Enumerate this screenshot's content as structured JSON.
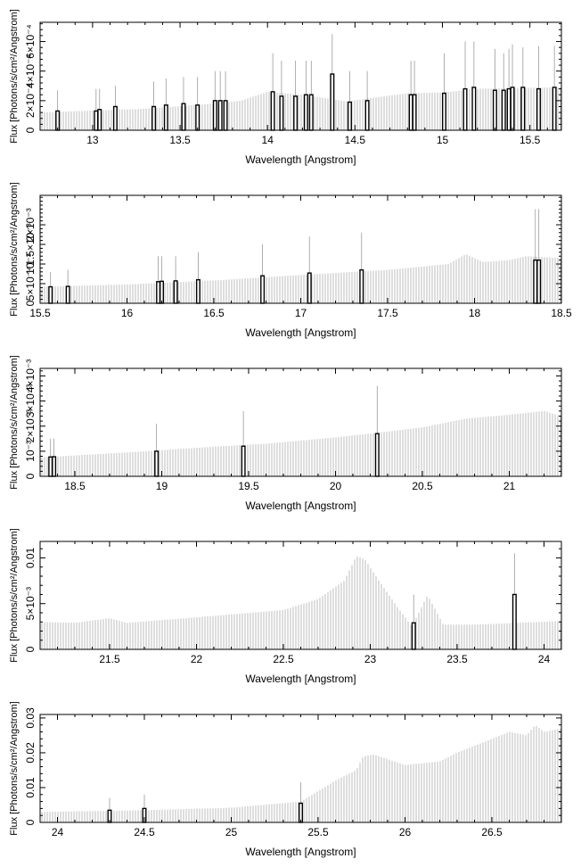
{
  "chart_data": [
    {
      "type": "bar",
      "xlabel": "Wavelength [Angstrom]",
      "ylabel": "Flux [Photons/s/cm²/Angstrom]",
      "xlim": [
        12.7,
        15.68
      ],
      "ylim": [
        0,
        0.00073
      ],
      "xticks": [
        13,
        13.5,
        14,
        14.5,
        15,
        15.5
      ],
      "xtick_labels": [
        "13",
        "13.5",
        "14",
        "14.5",
        "15",
        "15.5"
      ],
      "yticks": [
        0,
        0.0002,
        0.0004,
        0.0006
      ],
      "ytick_labels": [
        "0",
        "2×10⁻⁴",
        "4×10⁻⁴",
        "6×10⁻⁴"
      ],
      "continuum": [
        [
          12.7,
          0.00012
        ],
        [
          13.3,
          0.000145
        ],
        [
          13.7,
          0.00018
        ],
        [
          13.85,
          0.0002
        ],
        [
          14.0,
          0.00026
        ],
        [
          14.2,
          0.00024
        ],
        [
          14.45,
          0.000195
        ],
        [
          14.8,
          0.00025
        ],
        [
          15.0,
          0.000255
        ],
        [
          15.2,
          0.00028
        ],
        [
          15.68,
          0.00029
        ]
      ],
      "lines": [
        [
          12.8,
          0.00013,
          0.00027
        ],
        [
          13.02,
          0.00013,
          0.00028
        ],
        [
          13.04,
          0.00014,
          0.00028
        ],
        [
          13.13,
          0.00016,
          0.0003
        ],
        [
          13.35,
          0.00016,
          0.00033
        ],
        [
          13.42,
          0.00017,
          0.00035
        ],
        [
          13.52,
          0.00018,
          0.00036
        ],
        [
          13.6,
          0.00017,
          0.00036
        ],
        [
          13.7,
          0.0002,
          0.0004
        ],
        [
          13.73,
          0.0002,
          0.0004
        ],
        [
          13.76,
          0.0002,
          0.0004
        ],
        [
          14.03,
          0.00026,
          0.00052
        ],
        [
          14.08,
          0.00023,
          0.00047
        ],
        [
          14.16,
          0.00023,
          0.00047
        ],
        [
          14.22,
          0.00024,
          0.00047
        ],
        [
          14.25,
          0.00024,
          0.00047
        ],
        [
          14.37,
          0.00038,
          0.00065
        ],
        [
          14.47,
          0.00019,
          0.0004
        ],
        [
          14.57,
          0.0002,
          0.0004
        ],
        [
          14.82,
          0.00024,
          0.00047
        ],
        [
          14.84,
          0.00024,
          0.00047
        ],
        [
          15.01,
          0.00025,
          0.00052
        ],
        [
          15.13,
          0.00028,
          0.0006
        ],
        [
          15.18,
          0.00029,
          0.0006
        ],
        [
          15.3,
          0.00027,
          0.00055
        ],
        [
          15.35,
          0.00027,
          0.00052
        ],
        [
          15.38,
          0.00028,
          0.00055
        ],
        [
          15.4,
          0.00029,
          0.00058
        ],
        [
          15.46,
          0.00029,
          0.00056
        ],
        [
          15.55,
          0.00028,
          0.00057
        ],
        [
          15.64,
          0.00029,
          0.00057
        ]
      ]
    },
    {
      "type": "bar",
      "xlabel": "Wavelength [Angstrom]",
      "ylabel": "Flux [Photons/s/cm²/Angstrom]",
      "xlim": [
        15.5,
        18.5
      ],
      "ylim": [
        0,
        0.00275
      ],
      "xticks": [
        15.5,
        16,
        16.5,
        17,
        17.5,
        18,
        18.5
      ],
      "xtick_labels": [
        "15.5",
        "16",
        "16.5",
        "17",
        "17.5",
        "18",
        "18.5"
      ],
      "yticks": [
        0,
        0.0005,
        0.001,
        0.0015,
        0.002
      ],
      "ytick_labels": [
        "0",
        "5×10⁻⁴",
        "10⁻³",
        "1.5×10⁻³",
        "2×10⁻³"
      ],
      "continuum": [
        [
          15.5,
          0.00042
        ],
        [
          16.0,
          0.00048
        ],
        [
          16.5,
          0.00058
        ],
        [
          17.0,
          0.00072
        ],
        [
          17.5,
          0.00085
        ],
        [
          17.85,
          0.001
        ],
        [
          17.95,
          0.00125
        ],
        [
          18.05,
          0.00105
        ],
        [
          18.2,
          0.0011
        ],
        [
          18.3,
          0.0012
        ],
        [
          18.5,
          0.00115
        ]
      ],
      "lines": [
        [
          15.56,
          0.00042,
          0.0008
        ],
        [
          15.66,
          0.00043,
          0.00085
        ],
        [
          16.18,
          0.00055,
          0.0012
        ],
        [
          16.2,
          0.00056,
          0.0012
        ],
        [
          16.28,
          0.00057,
          0.0012
        ],
        [
          16.41,
          0.0006,
          0.0013
        ],
        [
          16.78,
          0.0007,
          0.0015
        ],
        [
          17.05,
          0.00077,
          0.0017
        ],
        [
          17.35,
          0.00085,
          0.0018
        ],
        [
          18.35,
          0.0011,
          0.0024
        ],
        [
          18.37,
          0.0011,
          0.0024
        ]
      ]
    },
    {
      "type": "bar",
      "xlabel": "Wavelength [Angstrom]",
      "ylabel": "Flux [Photons/s/cm²/Angstrom]",
      "xlim": [
        18.3,
        21.3
      ],
      "ylim": [
        0,
        0.0043
      ],
      "xticks": [
        18.5,
        19,
        19.5,
        20,
        20.5,
        21
      ],
      "xtick_labels": [
        "18.5",
        "19",
        "19.5",
        "20",
        "20.5",
        "21"
      ],
      "yticks": [
        0,
        0.001,
        0.002,
        0.003,
        0.004
      ],
      "ytick_labels": [
        "0",
        "10⁻³",
        "2×10⁻³",
        "3×10⁻³",
        "4×10⁻³"
      ],
      "continuum": [
        [
          18.3,
          0.00075
        ],
        [
          18.8,
          0.00095
        ],
        [
          19.3,
          0.00118
        ],
        [
          19.6,
          0.0013
        ],
        [
          20.0,
          0.00155
        ],
        [
          20.2,
          0.0017
        ],
        [
          20.5,
          0.00195
        ],
        [
          20.75,
          0.0023
        ],
        [
          21.0,
          0.00245
        ],
        [
          21.2,
          0.0026
        ],
        [
          21.3,
          0.0024
        ]
      ],
      "lines": [
        [
          18.36,
          0.00077,
          0.0015
        ],
        [
          18.38,
          0.00078,
          0.0015
        ],
        [
          18.97,
          0.001,
          0.0021
        ],
        [
          19.47,
          0.0012,
          0.0026
        ],
        [
          20.24,
          0.0017,
          0.0036
        ]
      ]
    },
    {
      "type": "bar",
      "xlabel": "Wavelength [Angstrom]",
      "ylabel": "Flux [Photons/s/cm²/Angstrom]",
      "xlim": [
        21.1,
        24.1
      ],
      "ylim": [
        0,
        0.0118
      ],
      "xticks": [
        21.5,
        22,
        22.5,
        23,
        23.5,
        24
      ],
      "xtick_labels": [
        "21.5",
        "22",
        "22.5",
        "23",
        "23.5",
        "24"
      ],
      "yticks": [
        0,
        0.005,
        0.01
      ],
      "ytick_labels": [
        "0",
        "5×10⁻³",
        "0.01"
      ],
      "continuum": [
        [
          21.1,
          0.003
        ],
        [
          21.3,
          0.0029
        ],
        [
          21.5,
          0.0034
        ],
        [
          21.6,
          0.0029
        ],
        [
          22.0,
          0.0035
        ],
        [
          22.5,
          0.0043
        ],
        [
          22.7,
          0.0055
        ],
        [
          22.85,
          0.0075
        ],
        [
          22.92,
          0.0102
        ],
        [
          22.97,
          0.0098
        ],
        [
          23.05,
          0.0075
        ],
        [
          23.15,
          0.0048
        ],
        [
          23.24,
          0.0025
        ],
        [
          23.3,
          0.0048
        ],
        [
          23.33,
          0.0059
        ],
        [
          23.37,
          0.0045
        ],
        [
          23.42,
          0.0027
        ],
        [
          23.6,
          0.0027
        ],
        [
          24.1,
          0.0031
        ]
      ],
      "lines": [
        [
          23.25,
          0.0029,
          0.006
        ],
        [
          23.83,
          0.006,
          0.0105
        ]
      ]
    },
    {
      "type": "bar",
      "xlabel": "Wavelength [Angstrom]",
      "ylabel": "Flux [Photons/s/cm²/Angstrom]",
      "xlim": [
        23.9,
        26.9
      ],
      "ylim": [
        0,
        0.031
      ],
      "xticks": [
        24,
        24.5,
        25,
        25.5,
        26,
        26.5
      ],
      "xtick_labels": [
        "24",
        "24.5",
        "25",
        "25.5",
        "26",
        "26.5"
      ],
      "yticks": [
        0,
        0.01,
        0.02,
        0.03
      ],
      "ytick_labels": [
        "0",
        "0.01",
        "0.02",
        "0.03"
      ],
      "continuum": [
        [
          23.9,
          0.003
        ],
        [
          24.5,
          0.0035
        ],
        [
          25.0,
          0.0042
        ],
        [
          25.4,
          0.006
        ],
        [
          25.6,
          0.012
        ],
        [
          25.72,
          0.015
        ],
        [
          25.76,
          0.019
        ],
        [
          25.82,
          0.0195
        ],
        [
          26.0,
          0.0165
        ],
        [
          26.2,
          0.0175
        ],
        [
          26.3,
          0.02
        ],
        [
          26.5,
          0.024
        ],
        [
          26.6,
          0.026
        ],
        [
          26.7,
          0.025
        ],
        [
          26.75,
          0.028
        ],
        [
          26.8,
          0.026
        ],
        [
          26.9,
          0.027
        ]
      ],
      "lines": [
        [
          24.3,
          0.0035,
          0.007
        ],
        [
          24.5,
          0.004,
          0.008
        ],
        [
          25.4,
          0.0055,
          0.0115
        ]
      ]
    }
  ]
}
